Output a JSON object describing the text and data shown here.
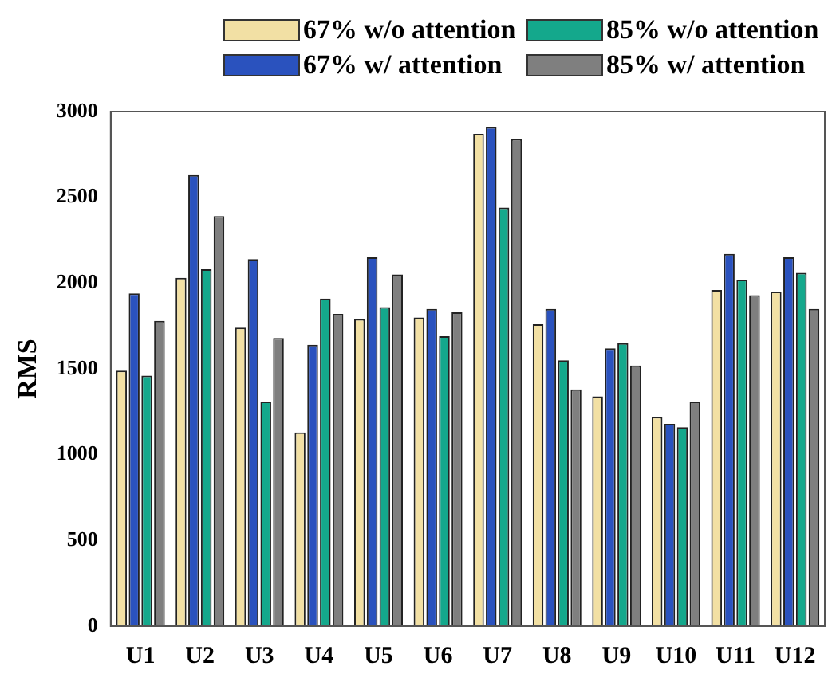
{
  "chart_data": {
    "type": "bar",
    "ylabel": "RMS",
    "categories": [
      "U1",
      "U2",
      "U3",
      "U4",
      "U5",
      "U6",
      "U7",
      "U8",
      "U9",
      "U10",
      "U11",
      "U12"
    ],
    "series": [
      {
        "name": "67% w/o attention",
        "color": "#f2e0a4",
        "values": [
          1490,
          2030,
          1740,
          1130,
          1790,
          1800,
          2870,
          1760,
          1340,
          1220,
          1960,
          1950
        ]
      },
      {
        "name": "67% w/ attention",
        "color": "#2a52be",
        "values": [
          1940,
          2630,
          2140,
          1640,
          2150,
          1850,
          2910,
          1850,
          1620,
          1180,
          2170,
          2150
        ]
      },
      {
        "name": "85% w/o attention",
        "color": "#14a88c",
        "values": [
          1460,
          2080,
          1310,
          1910,
          1860,
          1690,
          2440,
          1550,
          1650,
          1160,
          2020,
          2060
        ]
      },
      {
        "name": "85% w/ attention",
        "color": "#7f7f7f",
        "values": [
          1780,
          2390,
          1680,
          1820,
          2050,
          1830,
          2840,
          1380,
          1520,
          1310,
          1930,
          1850
        ]
      }
    ],
    "ylim": [
      0,
      3000
    ],
    "yticks": [
      0,
      500,
      1000,
      1500,
      2000,
      2500,
      3000
    ],
    "grid": false,
    "legend": "top"
  }
}
